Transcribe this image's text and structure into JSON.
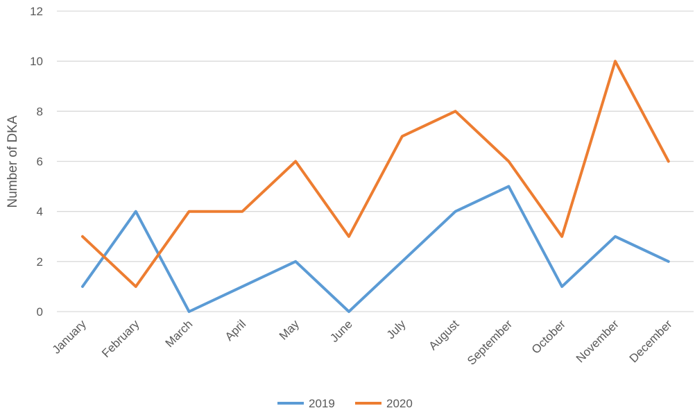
{
  "chart_data": {
    "type": "line",
    "title": "",
    "xlabel": "",
    "ylabel": "Number of DKA",
    "categories": [
      "January",
      "February",
      "March",
      "April",
      "May",
      "June",
      "July",
      "August",
      "September",
      "October",
      "November",
      "December"
    ],
    "ylim": [
      0,
      12
    ],
    "yticks": [
      0,
      2,
      4,
      6,
      8,
      10,
      12
    ],
    "grid": true,
    "legend_position": "bottom",
    "series": [
      {
        "name": "2019",
        "color": "#5b9bd5",
        "values": [
          1,
          4,
          0,
          1,
          2,
          0,
          2,
          4,
          5,
          1,
          3,
          2
        ]
      },
      {
        "name": "2020",
        "color": "#ed7d31",
        "values": [
          3,
          1,
          4,
          4,
          6,
          3,
          7,
          8,
          6,
          3,
          10,
          6
        ]
      }
    ]
  }
}
